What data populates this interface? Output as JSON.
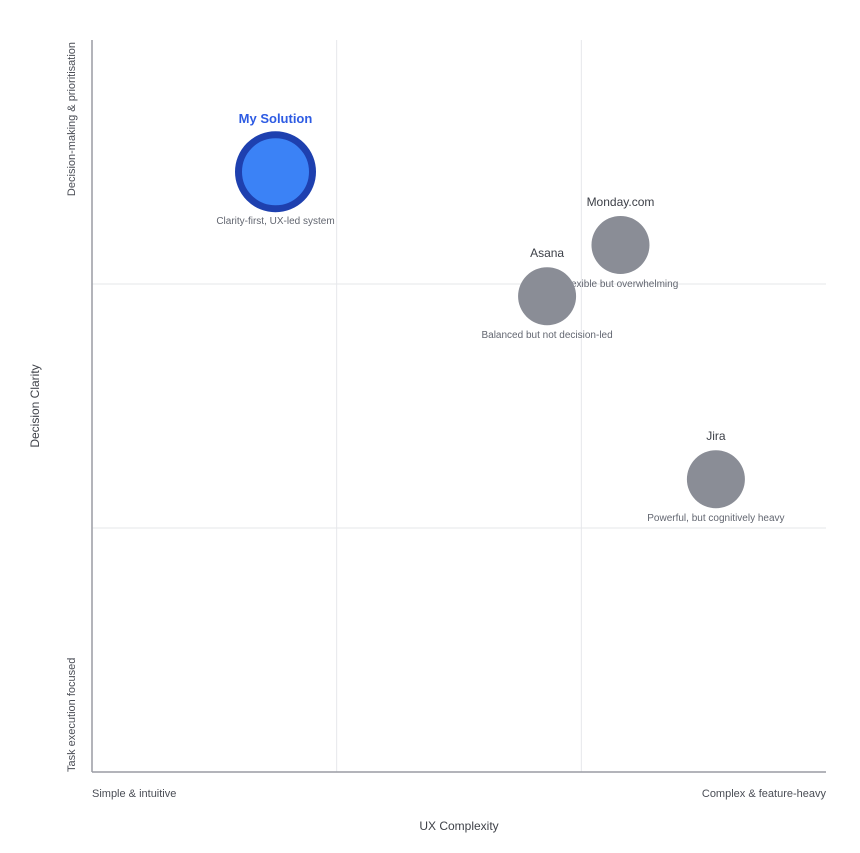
{
  "chart_data": {
    "type": "scatter",
    "title": "",
    "xlabel": "UX Complexity",
    "ylabel": "Decision Clarity",
    "x_axis_labels": {
      "low": "Simple & intuitive",
      "high": "Complex & feature-heavy"
    },
    "y_axis_labels": {
      "low": "Task execution focused",
      "high": "Decision-making & prioritisation"
    },
    "xlim": [
      0,
      10
    ],
    "ylim": [
      0,
      10
    ],
    "grid": true,
    "points": [
      {
        "name": "My Solution",
        "description": "Clarity-first, UX-led system",
        "x": 2.5,
        "y": 8.2,
        "highlight": true,
        "color": "#3b82f6",
        "stroke": "#1e40af"
      },
      {
        "name": "Monday.com",
        "description": "Flexible but overwhelming",
        "x": 7.2,
        "y": 7.2,
        "highlight": false,
        "color": "#8a8d96",
        "stroke": "#8a8d96"
      },
      {
        "name": "Asana",
        "description": "Balanced but not decision-led",
        "x": 6.2,
        "y": 6.5,
        "highlight": false,
        "color": "#8a8d96",
        "stroke": "#8a8d96"
      },
      {
        "name": "Jira",
        "description": "Powerful, but cognitively heavy",
        "x": 8.5,
        "y": 4.0,
        "highlight": false,
        "color": "#8a8d96",
        "stroke": "#8a8d96"
      }
    ]
  }
}
